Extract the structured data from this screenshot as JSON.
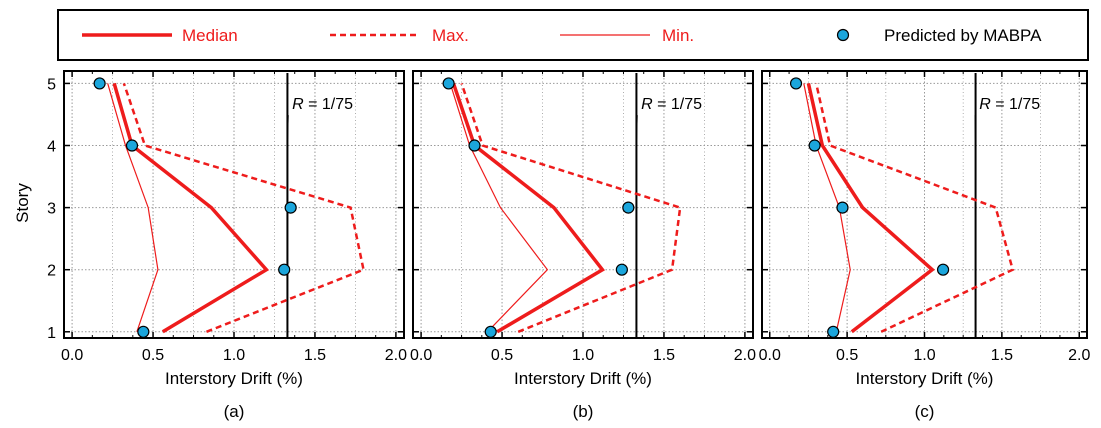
{
  "legend": {
    "median": "Median",
    "max": "Max.",
    "min": "Min.",
    "predicted": "Predicted by MABPA"
  },
  "ylabel": "Story",
  "colors": {
    "red": "#ee1c1c",
    "marker_fill": "#1ba6dc",
    "black": "#000000",
    "grid": "#9a9a9a"
  },
  "chart_data": [
    {
      "type": "line",
      "panel_label": "(a)",
      "xlabel": "Interstory Drift  (%)",
      "ylabel": "Story",
      "xlim": [
        -0.05,
        2.05
      ],
      "ylim": [
        0.9,
        5.2
      ],
      "xticks": [
        "0.0",
        "0.5",
        "1.0",
        "1.5",
        "2.0"
      ],
      "yticks": [
        "1",
        "2",
        "3",
        "4",
        "5"
      ],
      "grid": true,
      "limit_line": {
        "x": 1.33,
        "label_pre": "R",
        "label_post": " = 1/75",
        "label_x": 1.47,
        "label_y": 4.65
      },
      "series": [
        {
          "name": "Median",
          "style": "thick",
          "x": [
            0.56,
            1.2,
            0.86,
            0.37,
            0.26
          ],
          "y": [
            1,
            2,
            3,
            4,
            5
          ]
        },
        {
          "name": "Max.",
          "style": "dashed",
          "x": [
            0.83,
            1.8,
            1.72,
            0.45,
            0.32
          ],
          "y": [
            1,
            2,
            3,
            4,
            5
          ]
        },
        {
          "name": "Min.",
          "style": "thin",
          "x": [
            0.4,
            0.53,
            0.47,
            0.33,
            0.22
          ],
          "y": [
            1,
            2,
            3,
            4,
            5
          ]
        },
        {
          "name": "Predicted by MABPA",
          "style": "marker",
          "x": [
            0.44,
            1.31,
            1.35,
            0.37,
            0.17
          ],
          "y": [
            1,
            2,
            3,
            4,
            5
          ]
        }
      ]
    },
    {
      "type": "line",
      "panel_label": "(b)",
      "xlabel": "Interstory Drift  (%)",
      "ylabel": "",
      "xlim": [
        -0.05,
        2.05
      ],
      "ylim": [
        0.9,
        5.2
      ],
      "xticks": [
        "0.0",
        "0.5",
        "1.0",
        "1.5",
        "2.0"
      ],
      "yticks": [
        "1",
        "2",
        "3",
        "4",
        "5"
      ],
      "grid": true,
      "limit_line": {
        "x": 1.33,
        "label_pre": "R",
        "label_post": " = 1/75",
        "label_x": 1.47,
        "label_y": 4.65
      },
      "series": [
        {
          "name": "Median",
          "style": "thick",
          "x": [
            0.47,
            1.12,
            0.82,
            0.33,
            0.2
          ],
          "y": [
            1,
            2,
            3,
            4,
            5
          ]
        },
        {
          "name": "Max.",
          "style": "dashed",
          "x": [
            0.6,
            1.55,
            1.6,
            0.38,
            0.25
          ],
          "y": [
            1,
            2,
            3,
            4,
            5
          ]
        },
        {
          "name": "Min.",
          "style": "thin",
          "x": [
            0.41,
            0.78,
            0.49,
            0.3,
            0.18
          ],
          "y": [
            1,
            2,
            3,
            4,
            5
          ]
        },
        {
          "name": "Predicted by MABPA",
          "style": "marker",
          "x": [
            0.43,
            1.24,
            1.28,
            0.33,
            0.17
          ],
          "y": [
            1,
            2,
            3,
            4,
            5
          ]
        }
      ]
    },
    {
      "type": "line",
      "panel_label": "(c)",
      "xlabel": "Interstory Drift  (%)",
      "ylabel": "",
      "xlim": [
        -0.05,
        2.05
      ],
      "ylim": [
        0.9,
        5.2
      ],
      "xticks": [
        "0.0",
        "0.5",
        "1.0",
        "1.5",
        "2.0"
      ],
      "yticks": [
        "1",
        "2",
        "3",
        "4",
        "5"
      ],
      "grid": true,
      "limit_line": {
        "x": 1.33,
        "label_pre": "R",
        "label_post": " = 1/75",
        "label_x": 1.47,
        "label_y": 4.65
      },
      "series": [
        {
          "name": "Median",
          "style": "thick",
          "x": [
            0.53,
            1.05,
            0.6,
            0.34,
            0.25
          ],
          "y": [
            1,
            2,
            3,
            4,
            5
          ]
        },
        {
          "name": "Max.",
          "style": "dashed",
          "x": [
            0.72,
            1.57,
            1.46,
            0.39,
            0.3
          ],
          "y": [
            1,
            2,
            3,
            4,
            5
          ]
        },
        {
          "name": "Min.",
          "style": "thin",
          "x": [
            0.43,
            0.52,
            0.45,
            0.3,
            0.22
          ],
          "y": [
            1,
            2,
            3,
            4,
            5
          ]
        },
        {
          "name": "Predicted by MABPA",
          "style": "marker",
          "x": [
            0.41,
            1.12,
            0.47,
            0.29,
            0.17
          ],
          "y": [
            1,
            2,
            3,
            4,
            5
          ]
        }
      ]
    }
  ]
}
